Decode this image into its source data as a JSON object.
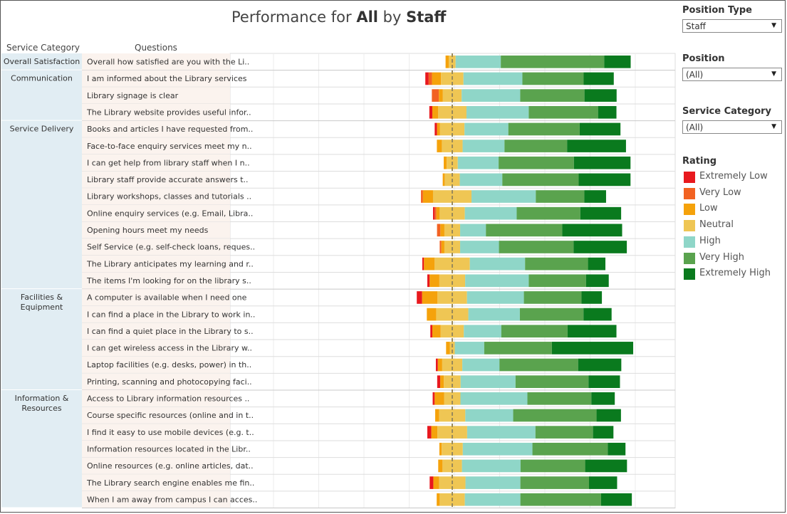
{
  "title": {
    "prefix": "Performance for ",
    "bold1": "All",
    "mid": " by ",
    "bold2": "Staff"
  },
  "column_headers": {
    "category": "Service Category",
    "questions": "Questions"
  },
  "filters": [
    {
      "label": "Position Type",
      "value": "Staff"
    },
    {
      "label": "Position",
      "value": "(All)"
    },
    {
      "label": "Service Category",
      "value": "(All)"
    }
  ],
  "legend": {
    "title": "Rating",
    "items": [
      {
        "label": "Extremely Low",
        "color": "#e8191e"
      },
      {
        "label": "Very Low",
        "color": "#f26222"
      },
      {
        "label": "Low",
        "color": "#f5a20b"
      },
      {
        "label": "Neutral",
        "color": "#efc654"
      },
      {
        "label": "High",
        "color": "#8fd6c8"
      },
      {
        "label": "Very High",
        "color": "#5aa34e"
      },
      {
        "label": "Extremely High",
        "color": "#0a7a1e"
      }
    ]
  },
  "chart_data": {
    "type": "bar",
    "stacked": "diverging",
    "series_order": [
      "Extremely Low",
      "Very Low",
      "Low",
      "Neutral",
      "High",
      "Very High",
      "Extremely High"
    ],
    "reference_line": "dashed vertical line",
    "groups": [
      {
        "name": "Overall Satisfaction",
        "rows": [
          {
            "question": "Overall how satisfied are you with the Li..",
            "values": [
              0,
              0,
              1.0,
              2.0,
              13.5,
              30.9,
              7.9
            ]
          }
        ]
      },
      {
        "name": "Communication",
        "rows": [
          {
            "question": "I am informed about the Library services",
            "values": [
              1.0,
              1.0,
              2.7,
              6.7,
              17.6,
              18.3,
              9.0
            ]
          },
          {
            "question": "Library signage is clear",
            "values": [
              0,
              2.1,
              1.2,
              5.6,
              17.5,
              19.2,
              9.6
            ]
          },
          {
            "question": "The Library website provides useful infor..",
            "values": [
              0.9,
              0,
              1.7,
              8.5,
              18.6,
              20.7,
              5.5
            ]
          }
        ]
      },
      {
        "name": "Service Delivery",
        "rows": [
          {
            "question": "Books and articles I have requested from..",
            "values": [
              0.7,
              0,
              0.9,
              7.3,
              13.1,
              21.3,
              12.2
            ]
          },
          {
            "question": "Face-to-face enquiry services meet my n..",
            "values": [
              0,
              0,
              1.5,
              6.2,
              12.5,
              18.7,
              17.6
            ]
          },
          {
            "question": "I can get help from library staff when I n..",
            "values": [
              0,
              0,
              0.9,
              3.3,
              12.2,
              22.5,
              16.9
            ]
          },
          {
            "question": "Library staff provide accurate answers t..",
            "values": [
              0,
              0,
              0.6,
              4.5,
              12.7,
              22.8,
              15.5
            ]
          },
          {
            "question": "Library workshops, classes and tutorials ..",
            "values": [
              0,
              0.6,
              3.0,
              11.5,
              19.2,
              14.5,
              6.5
            ]
          },
          {
            "question": "Online enquiry services (e.g. Email, Libra..",
            "values": [
              0.5,
              0.5,
              1.0,
              7.5,
              15.5,
              19.0,
              12.2
            ]
          },
          {
            "question": "Opening hours meet my needs",
            "values": [
              0,
              1.0,
              1.2,
              4.7,
              7.7,
              22.8,
              17.9
            ]
          },
          {
            "question": "Self Service (e.g. self-check loans, reques..",
            "values": [
              0,
              0.5,
              0.9,
              4.7,
              11.6,
              22.3,
              15.9
            ]
          },
          {
            "question": "The Library anticipates my learning and r..",
            "values": [
              0.5,
              0,
              3.2,
              10.5,
              16.5,
              18.8,
              5.2
            ]
          },
          {
            "question": "The items I'm looking for on the library s..",
            "values": [
              0.7,
              0,
              2.9,
              7.7,
              19.0,
              17.1,
              6.8
            ]
          }
        ]
      },
      {
        "name": "Facilities & Equipment",
        "rows": [
          {
            "question": "A computer is available when I need one",
            "values": [
              1.6,
              0,
              4.6,
              8.8,
              17.0,
              17.2,
              6.1
            ]
          },
          {
            "question": "I can find a place in the Library to work in..",
            "values": [
              0,
              0,
              2.8,
              9.6,
              15.4,
              19.0,
              8.4
            ]
          },
          {
            "question": "I can find a quiet place in the Library to s..",
            "values": [
              0.6,
              0,
              2.5,
              6.9,
              11.2,
              19.8,
              14.6
            ]
          },
          {
            "question": "I can get wireless access in the Library w..",
            "values": [
              0,
              0,
              1.1,
              1.5,
              8.8,
              20.2,
              24.3
            ]
          },
          {
            "question": "Laptop facilities (e.g. desks, power) in th..",
            "values": [
              0.6,
              0,
              1.3,
              6.0,
              11.1,
              23.5,
              12.9
            ]
          },
          {
            "question": "Printing, scanning and photocopying faci..",
            "values": [
              0.9,
              0,
              1.1,
              5.0,
              16.4,
              21.8,
              9.4
            ]
          }
        ]
      },
      {
        "name": "Information & Resources",
        "rows": [
          {
            "question": "Access to Library information resources ..",
            "values": [
              0.6,
              0,
              2.8,
              4.9,
              20.0,
              19.1,
              7.0
            ]
          },
          {
            "question": "Course specific resources (online and in t..",
            "values": [
              0,
              0,
              1.2,
              7.8,
              14.3,
              24.9,
              7.3
            ]
          },
          {
            "question": "I find it easy to use mobile devices (e.g. t..",
            "values": [
              1.2,
              0,
              1.8,
              8.9,
              20.4,
              17.2,
              6.1
            ]
          },
          {
            "question": "Information resources located in the Libr..",
            "values": [
              0,
              0,
              0.7,
              6.3,
              20.8,
              22.5,
              5.3
            ]
          },
          {
            "question": "Online resources (e.g. online articles, dat..",
            "values": [
              0,
              0,
              1.3,
              5.8,
              17.5,
              19.3,
              12.5
            ]
          },
          {
            "question": "The Library search engine enables me fin..",
            "values": [
              1.1,
              0,
              1.7,
              7.9,
              16.4,
              20.5,
              8.4
            ]
          },
          {
            "question": "When I am away from campus I can acces..",
            "values": [
              0,
              0,
              0.9,
              7.5,
              16.6,
              24.1,
              9.2
            ]
          }
        ]
      }
    ]
  }
}
